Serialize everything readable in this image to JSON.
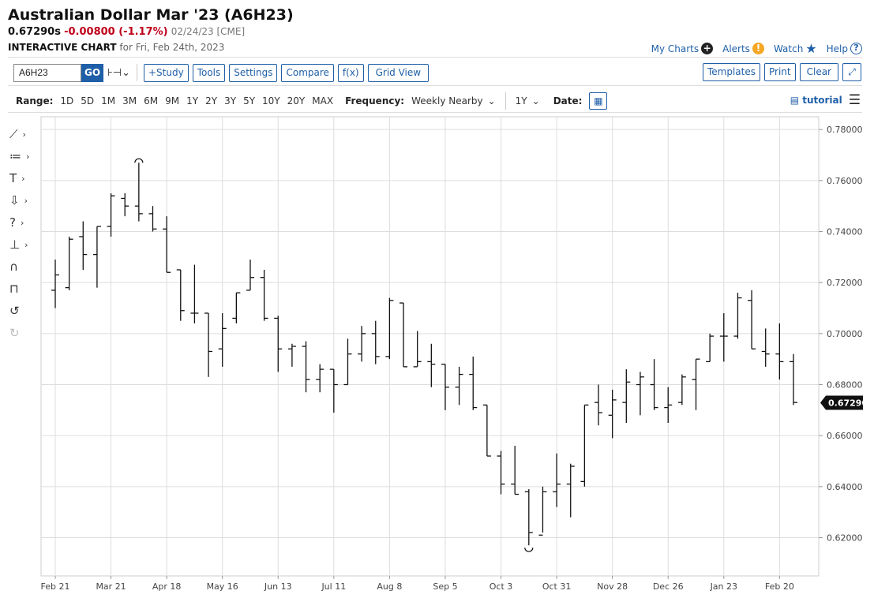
{
  "header": {
    "title": "Australian Dollar Mar '23 (A6H23)",
    "last": "0.67290s",
    "change": "-0.00800 (-1.17%)",
    "meta": "02/24/23 [CME]",
    "subtitle_bold": "INTERACTIVE CHART",
    "subtitle_date": "for Fri, Feb 24th, 2023"
  },
  "toplinks": {
    "my_charts": "My Charts",
    "alerts": "Alerts",
    "watch": "Watch",
    "help": "Help"
  },
  "toolbar": {
    "symbol_value": "A6H23",
    "go": "GO",
    "study": "+Study",
    "tools": "Tools",
    "settings": "Settings",
    "compare": "Compare",
    "fx": "f(x)",
    "grid_view": "Grid View",
    "templates": "Templates",
    "print": "Print",
    "clear": "Clear"
  },
  "rangebar": {
    "range_label": "Range:",
    "ranges": [
      "1D",
      "5D",
      "1M",
      "3M",
      "6M",
      "9M",
      "1Y",
      "2Y",
      "3Y",
      "5Y",
      "10Y",
      "20Y",
      "MAX"
    ],
    "frequency_label": "Frequency:",
    "frequency_value": "Weekly Nearby",
    "period_value": "1Y",
    "date_label": "Date:",
    "tutorial": "tutorial"
  },
  "colors": {
    "accent": "#1f5fa8",
    "down": "#c0001a",
    "alert": "#f5a623",
    "bar": "#111111",
    "grid": "#dddddd"
  },
  "chart_data": {
    "type": "ohlc",
    "ylim": [
      0.605,
      0.785
    ],
    "yticks": [
      "0.78000",
      "0.76000",
      "0.74000",
      "0.72000",
      "0.70000",
      "0.68000",
      "0.66000",
      "0.64000",
      "0.62000"
    ],
    "ytick_values": [
      0.78,
      0.76,
      0.74,
      0.72,
      0.7,
      0.68,
      0.66,
      0.64,
      0.62
    ],
    "xticks": [
      "Feb 21",
      "Mar 21",
      "Apr 18",
      "May 16",
      "Jun 13",
      "Jul 11",
      "Aug 8",
      "Sep 5",
      "Oct 3",
      "Oct 31",
      "Nov 28",
      "Dec 26",
      "Jan 23",
      "Feb 20"
    ],
    "last_price_label": "0.67290",
    "last_price": 0.6729,
    "bars": [
      {
        "o": 0.717,
        "h": 0.729,
        "l": 0.71,
        "c": 0.723
      },
      {
        "o": 0.718,
        "h": 0.738,
        "l": 0.717,
        "c": 0.737
      },
      {
        "o": 0.738,
        "h": 0.744,
        "l": 0.725,
        "c": 0.731
      },
      {
        "o": 0.731,
        "h": 0.742,
        "l": 0.718,
        "c": 0.742
      },
      {
        "o": 0.742,
        "h": 0.755,
        "l": 0.738,
        "c": 0.754
      },
      {
        "o": 0.753,
        "h": 0.755,
        "l": 0.746,
        "c": 0.75
      },
      {
        "o": 0.75,
        "h": 0.767,
        "l": 0.744,
        "c": 0.747
      },
      {
        "o": 0.747,
        "h": 0.75,
        "l": 0.74,
        "c": 0.741
      },
      {
        "o": 0.741,
        "h": 0.746,
        "l": 0.724,
        "c": 0.724
      },
      {
        "o": 0.725,
        "h": 0.725,
        "l": 0.705,
        "c": 0.709
      },
      {
        "o": 0.708,
        "h": 0.727,
        "l": 0.704,
        "c": 0.708
      },
      {
        "o": 0.708,
        "h": 0.708,
        "l": 0.683,
        "c": 0.693
      },
      {
        "o": 0.694,
        "h": 0.708,
        "l": 0.687,
        "c": 0.702
      },
      {
        "o": 0.706,
        "h": 0.716,
        "l": 0.704,
        "c": 0.716
      },
      {
        "o": 0.717,
        "h": 0.729,
        "l": 0.717,
        "c": 0.722
      },
      {
        "o": 0.722,
        "h": 0.725,
        "l": 0.705,
        "c": 0.706
      },
      {
        "o": 0.706,
        "h": 0.707,
        "l": 0.685,
        "c": 0.694
      },
      {
        "o": 0.694,
        "h": 0.696,
        "l": 0.687,
        "c": 0.695
      },
      {
        "o": 0.695,
        "h": 0.697,
        "l": 0.677,
        "c": 0.682
      },
      {
        "o": 0.682,
        "h": 0.688,
        "l": 0.677,
        "c": 0.686
      },
      {
        "o": 0.686,
        "h": 0.686,
        "l": 0.669,
        "c": 0.68
      },
      {
        "o": 0.68,
        "h": 0.698,
        "l": 0.68,
        "c": 0.692
      },
      {
        "o": 0.692,
        "h": 0.703,
        "l": 0.689,
        "c": 0.7
      },
      {
        "o": 0.7,
        "h": 0.705,
        "l": 0.688,
        "c": 0.691
      },
      {
        "o": 0.691,
        "h": 0.714,
        "l": 0.69,
        "c": 0.713
      },
      {
        "o": 0.712,
        "h": 0.712,
        "l": 0.687,
        "c": 0.687
      },
      {
        "o": 0.687,
        "h": 0.701,
        "l": 0.687,
        "c": 0.689
      },
      {
        "o": 0.689,
        "h": 0.696,
        "l": 0.679,
        "c": 0.688
      },
      {
        "o": 0.688,
        "h": 0.688,
        "l": 0.67,
        "c": 0.679
      },
      {
        "o": 0.679,
        "h": 0.687,
        "l": 0.672,
        "c": 0.684
      },
      {
        "o": 0.684,
        "h": 0.691,
        "l": 0.67,
        "c": 0.671
      },
      {
        "o": 0.672,
        "h": 0.672,
        "l": 0.652,
        "c": 0.652
      },
      {
        "o": 0.652,
        "h": 0.654,
        "l": 0.637,
        "c": 0.641
      },
      {
        "o": 0.641,
        "h": 0.656,
        "l": 0.637,
        "c": 0.637
      },
      {
        "o": 0.638,
        "h": 0.639,
        "l": 0.617,
        "c": 0.622
      },
      {
        "o": 0.621,
        "h": 0.64,
        "l": 0.622,
        "c": 0.638
      },
      {
        "o": 0.638,
        "h": 0.653,
        "l": 0.632,
        "c": 0.641
      },
      {
        "o": 0.641,
        "h": 0.649,
        "l": 0.628,
        "c": 0.648
      },
      {
        "o": 0.642,
        "h": 0.672,
        "l": 0.64,
        "c": 0.672
      },
      {
        "o": 0.673,
        "h": 0.68,
        "l": 0.664,
        "c": 0.669
      },
      {
        "o": 0.668,
        "h": 0.678,
        "l": 0.659,
        "c": 0.674
      },
      {
        "o": 0.673,
        "h": 0.686,
        "l": 0.665,
        "c": 0.681
      },
      {
        "o": 0.68,
        "h": 0.685,
        "l": 0.668,
        "c": 0.683
      },
      {
        "o": 0.68,
        "h": 0.69,
        "l": 0.67,
        "c": 0.671
      },
      {
        "o": 0.671,
        "h": 0.679,
        "l": 0.665,
        "c": 0.672
      },
      {
        "o": 0.673,
        "h": 0.684,
        "l": 0.672,
        "c": 0.683
      },
      {
        "o": 0.682,
        "h": 0.69,
        "l": 0.67,
        "c": 0.69
      },
      {
        "o": 0.689,
        "h": 0.7,
        "l": 0.689,
        "c": 0.699
      },
      {
        "o": 0.699,
        "h": 0.708,
        "l": 0.689,
        "c": 0.699
      },
      {
        "o": 0.699,
        "h": 0.716,
        "l": 0.698,
        "c": 0.714
      },
      {
        "o": 0.713,
        "h": 0.717,
        "l": 0.694,
        "c": 0.694
      },
      {
        "o": 0.693,
        "h": 0.702,
        "l": 0.687,
        "c": 0.692
      },
      {
        "o": 0.692,
        "h": 0.704,
        "l": 0.682,
        "c": 0.689
      },
      {
        "o": 0.689,
        "h": 0.692,
        "l": 0.672,
        "c": 0.673
      }
    ]
  }
}
